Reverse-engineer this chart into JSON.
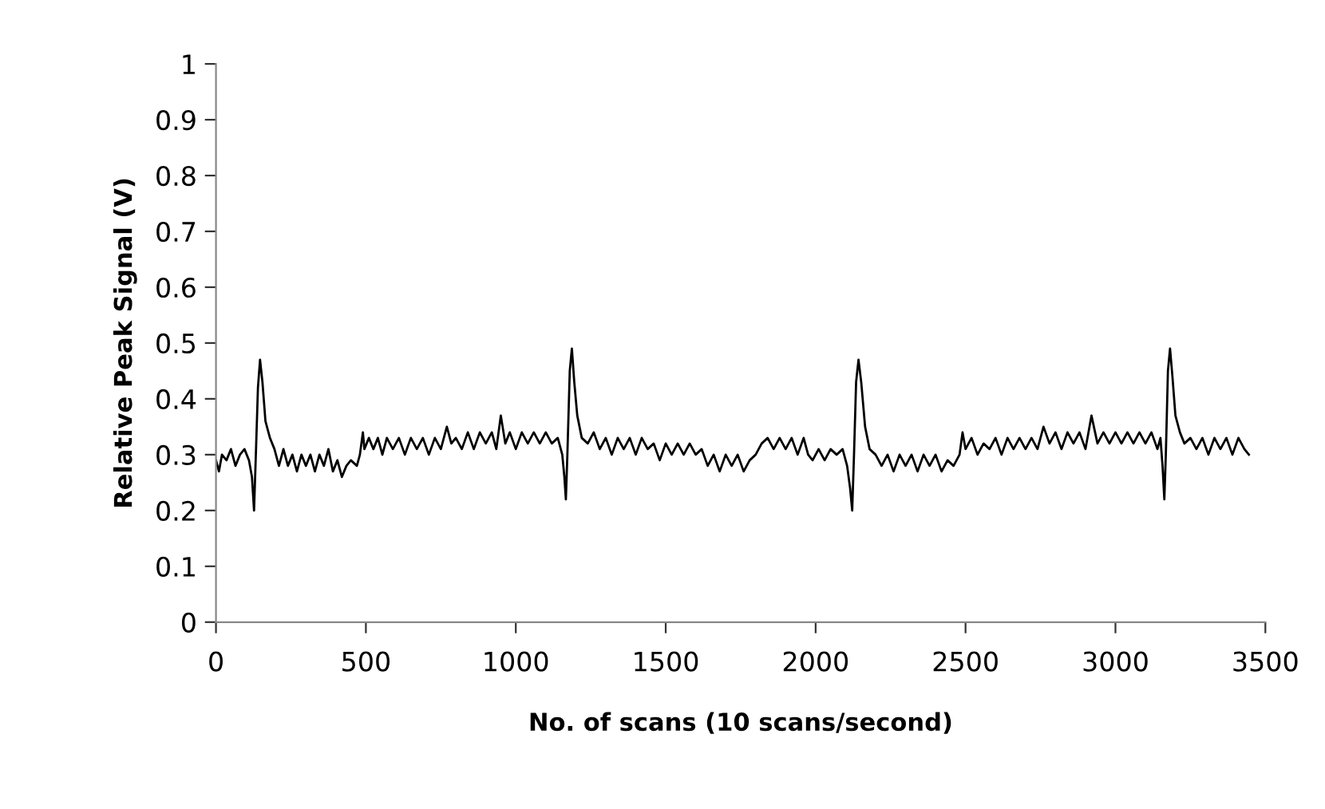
{
  "chart_data": {
    "type": "line",
    "xlabel": "No. of scans (10 scans/second)",
    "ylabel": "Relative Peak Signal (V)",
    "xlim": [
      0,
      3500
    ],
    "xticks": [
      0,
      500,
      1000,
      1500,
      2000,
      2500,
      3000,
      3500
    ],
    "ylim": [
      0,
      1
    ],
    "yticks": [
      0,
      0.1,
      0.2,
      0.3,
      0.4,
      0.5,
      0.6,
      0.7,
      0.8,
      0.9,
      1
    ],
    "grid": false,
    "marker": "none",
    "line_style": "solid",
    "series": [
      {
        "color": "#000000",
        "x": [
          0,
          10,
          20,
          35,
          50,
          65,
          80,
          95,
          110,
          120,
          127,
          133,
          140,
          147,
          155,
          165,
          180,
          195,
          210,
          225,
          240,
          255,
          270,
          285,
          300,
          315,
          330,
          345,
          360,
          375,
          390,
          405,
          420,
          435,
          450,
          470,
          480,
          490,
          495,
          510,
          525,
          540,
          555,
          570,
          590,
          610,
          630,
          650,
          670,
          690,
          710,
          730,
          750,
          770,
          785,
          800,
          820,
          840,
          860,
          880,
          900,
          920,
          935,
          950,
          965,
          980,
          1000,
          1020,
          1040,
          1060,
          1080,
          1100,
          1120,
          1140,
          1155,
          1162,
          1167,
          1172,
          1180,
          1187,
          1195,
          1205,
          1220,
          1240,
          1260,
          1280,
          1300,
          1320,
          1340,
          1360,
          1380,
          1400,
          1420,
          1440,
          1460,
          1480,
          1500,
          1520,
          1540,
          1560,
          1580,
          1600,
          1620,
          1640,
          1660,
          1680,
          1700,
          1720,
          1740,
          1760,
          1780,
          1800,
          1820,
          1840,
          1860,
          1880,
          1900,
          1920,
          1940,
          1960,
          1975,
          1990,
          2010,
          2030,
          2050,
          2070,
          2090,
          2105,
          2115,
          2122,
          2128,
          2135,
          2143,
          2152,
          2165,
          2180,
          2200,
          2220,
          2240,
          2260,
          2280,
          2300,
          2320,
          2340,
          2360,
          2380,
          2400,
          2420,
          2440,
          2460,
          2480,
          2490,
          2500,
          2520,
          2540,
          2560,
          2580,
          2600,
          2620,
          2640,
          2660,
          2680,
          2700,
          2720,
          2740,
          2760,
          2780,
          2800,
          2820,
          2840,
          2860,
          2880,
          2900,
          2920,
          2940,
          2960,
          2980,
          3000,
          3020,
          3040,
          3060,
          3080,
          3100,
          3120,
          3140,
          3150,
          3157,
          3163,
          3168,
          3175,
          3182,
          3190,
          3200,
          3215,
          3230,
          3250,
          3270,
          3290,
          3310,
          3330,
          3350,
          3370,
          3390,
          3410,
          3430,
          3445
        ],
        "values": [
          0.29,
          0.27,
          0.3,
          0.29,
          0.31,
          0.28,
          0.3,
          0.31,
          0.29,
          0.26,
          0.2,
          0.3,
          0.42,
          0.47,
          0.43,
          0.36,
          0.33,
          0.31,
          0.28,
          0.31,
          0.28,
          0.3,
          0.27,
          0.3,
          0.28,
          0.3,
          0.27,
          0.3,
          0.28,
          0.31,
          0.27,
          0.29,
          0.26,
          0.28,
          0.29,
          0.28,
          0.3,
          0.34,
          0.31,
          0.33,
          0.31,
          0.33,
          0.3,
          0.33,
          0.31,
          0.33,
          0.3,
          0.33,
          0.31,
          0.33,
          0.3,
          0.33,
          0.31,
          0.35,
          0.32,
          0.33,
          0.31,
          0.34,
          0.31,
          0.34,
          0.32,
          0.34,
          0.31,
          0.37,
          0.32,
          0.34,
          0.31,
          0.34,
          0.32,
          0.34,
          0.32,
          0.34,
          0.32,
          0.33,
          0.3,
          0.26,
          0.22,
          0.3,
          0.45,
          0.49,
          0.43,
          0.37,
          0.33,
          0.32,
          0.34,
          0.31,
          0.33,
          0.3,
          0.33,
          0.31,
          0.33,
          0.3,
          0.33,
          0.31,
          0.32,
          0.29,
          0.32,
          0.3,
          0.32,
          0.3,
          0.32,
          0.3,
          0.31,
          0.28,
          0.3,
          0.27,
          0.3,
          0.28,
          0.3,
          0.27,
          0.29,
          0.3,
          0.32,
          0.33,
          0.31,
          0.33,
          0.31,
          0.33,
          0.3,
          0.33,
          0.3,
          0.29,
          0.31,
          0.29,
          0.31,
          0.3,
          0.31,
          0.28,
          0.24,
          0.2,
          0.3,
          0.43,
          0.47,
          0.43,
          0.35,
          0.31,
          0.3,
          0.28,
          0.3,
          0.27,
          0.3,
          0.28,
          0.3,
          0.27,
          0.3,
          0.28,
          0.3,
          0.27,
          0.29,
          0.28,
          0.3,
          0.34,
          0.31,
          0.33,
          0.3,
          0.32,
          0.31,
          0.33,
          0.3,
          0.33,
          0.31,
          0.33,
          0.31,
          0.33,
          0.31,
          0.35,
          0.32,
          0.34,
          0.31,
          0.34,
          0.32,
          0.34,
          0.31,
          0.37,
          0.32,
          0.34,
          0.32,
          0.34,
          0.32,
          0.34,
          0.32,
          0.34,
          0.32,
          0.34,
          0.31,
          0.33,
          0.28,
          0.22,
          0.3,
          0.45,
          0.49,
          0.44,
          0.37,
          0.34,
          0.32,
          0.33,
          0.31,
          0.33,
          0.3,
          0.33,
          0.31,
          0.33,
          0.3,
          0.33,
          0.31,
          0.3
        ]
      }
    ]
  }
}
